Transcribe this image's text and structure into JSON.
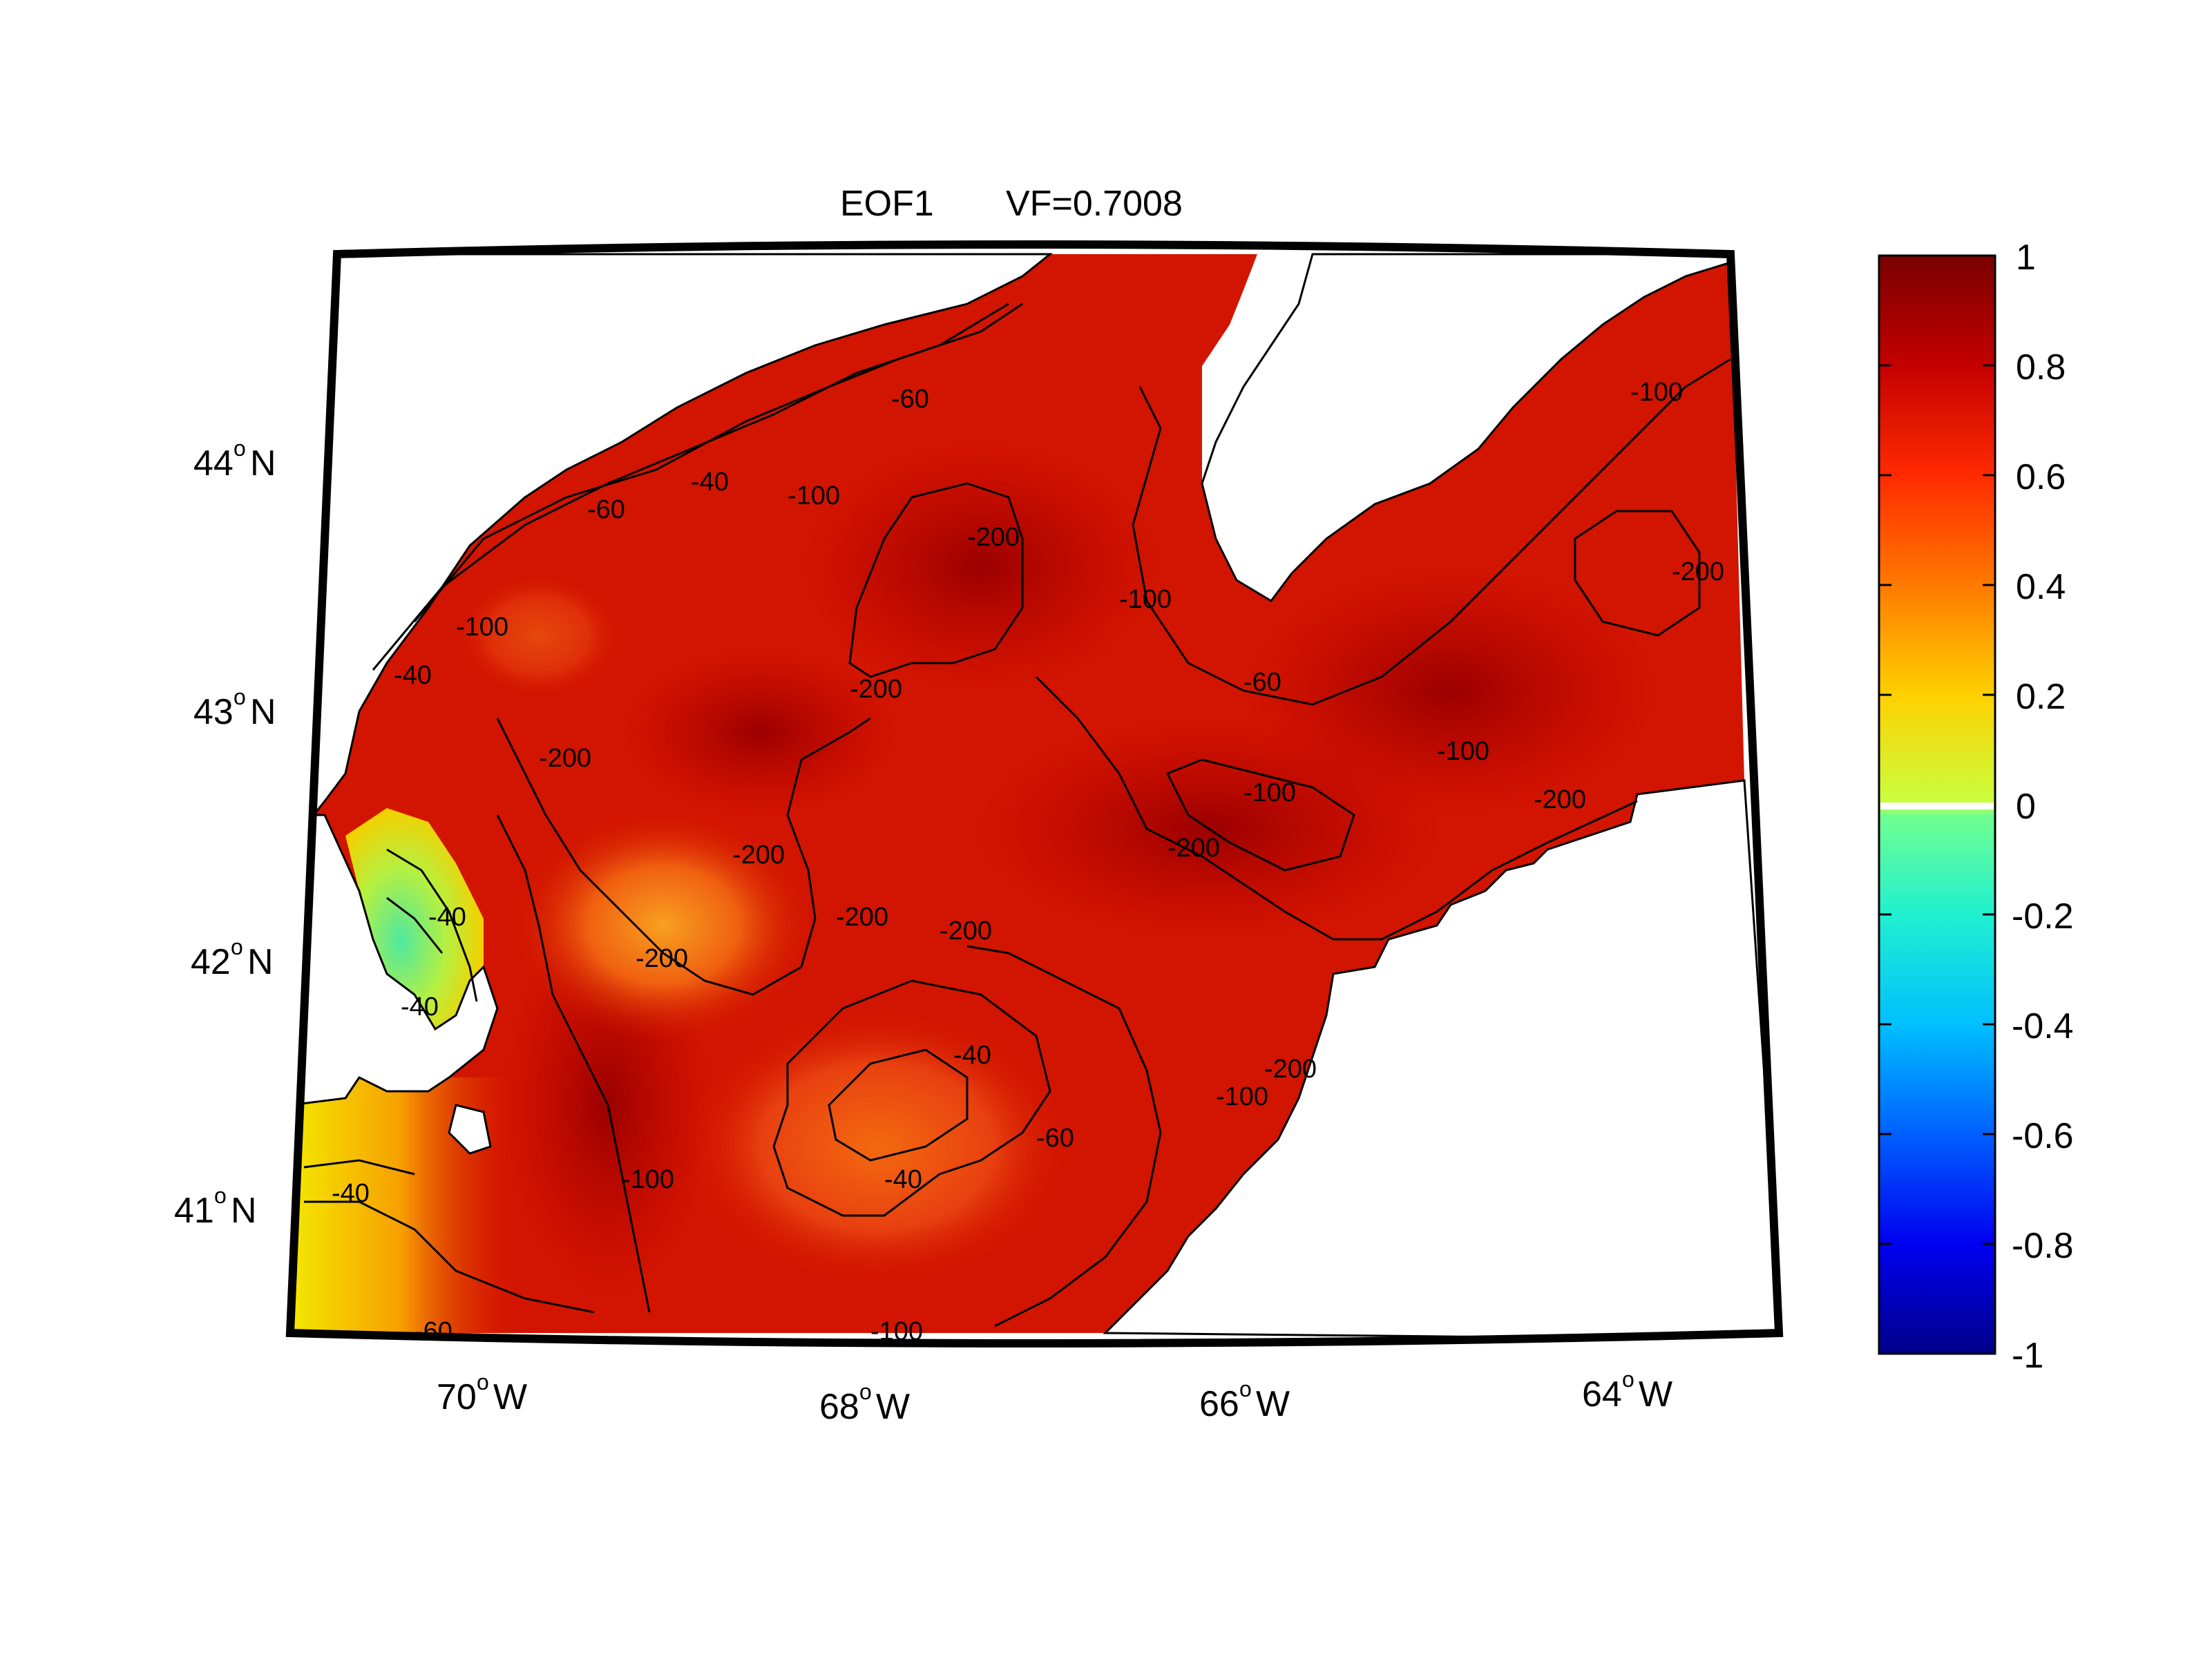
{
  "title": "EOF1",
  "variance_label": "VF=0.7008",
  "colorbar": {
    "ticks": [
      "1",
      "0.8",
      "0.6",
      "0.4",
      "0.2",
      "0",
      "-0.2",
      "-0.4",
      "-0.6",
      "-0.8",
      "-1"
    ],
    "range": [
      -1,
      1
    ]
  },
  "lat_ticks": [
    {
      "deg": "44",
      "hem": "N"
    },
    {
      "deg": "43",
      "hem": "N"
    },
    {
      "deg": "42",
      "hem": "N"
    },
    {
      "deg": "41",
      "hem": "N"
    }
  ],
  "lon_ticks": [
    {
      "deg": "70",
      "hem": "W"
    },
    {
      "deg": "68",
      "hem": "W"
    },
    {
      "deg": "66",
      "hem": "W"
    },
    {
      "deg": "64",
      "hem": "W"
    }
  ],
  "contour_labels": [
    "-40",
    "-60",
    "-100",
    "-200"
  ],
  "colors": {
    "deep_red": "#a80000",
    "red": "#d21500",
    "orange": "#f36a10",
    "yellow": "#f4e800",
    "green_cyan": "#4fe8a0",
    "land": "#ffffff",
    "frame": "#000000"
  }
}
